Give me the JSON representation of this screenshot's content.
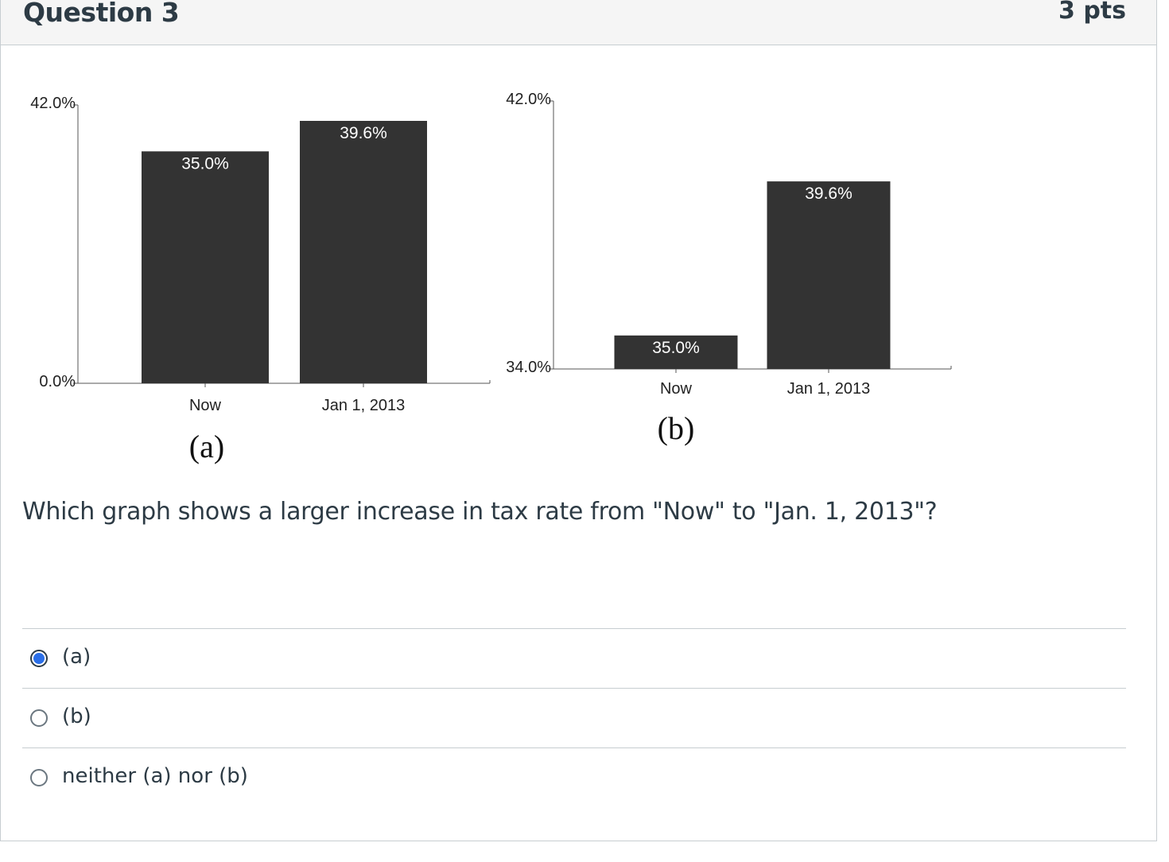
{
  "question": {
    "title": "Question 3",
    "points": "3 pts",
    "text": "Which graph shows a larger increase in tax rate from \"Now\" to \"Jan. 1, 2013\"?"
  },
  "chart_data": [
    {
      "type": "bar",
      "panel_label": "(a)",
      "categories": [
        "Now",
        "Jan 1, 2013"
      ],
      "values": [
        35.0,
        39.6
      ],
      "value_labels": [
        "35.0%",
        "39.6%"
      ],
      "ylim": [
        0,
        42
      ],
      "ytick_labels": [
        "0.0%",
        "42.0%"
      ],
      "bar_color": "#333333"
    },
    {
      "type": "bar",
      "panel_label": "(b)",
      "categories": [
        "Now",
        "Jan 1, 2013"
      ],
      "values": [
        35.0,
        39.6
      ],
      "value_labels": [
        "35.0%",
        "39.6%"
      ],
      "ylim": [
        34,
        42
      ],
      "ytick_labels": [
        "34.0%",
        "42.0%"
      ],
      "bar_color": "#333333"
    }
  ],
  "answers": [
    {
      "label": "(a)",
      "selected": true
    },
    {
      "label": "(b)",
      "selected": false
    },
    {
      "label": "neither (a) nor (b)",
      "selected": false
    }
  ],
  "colors": {
    "accent": "#2b6fe8",
    "text": "#2d3b45",
    "border": "#c7cdd1"
  }
}
